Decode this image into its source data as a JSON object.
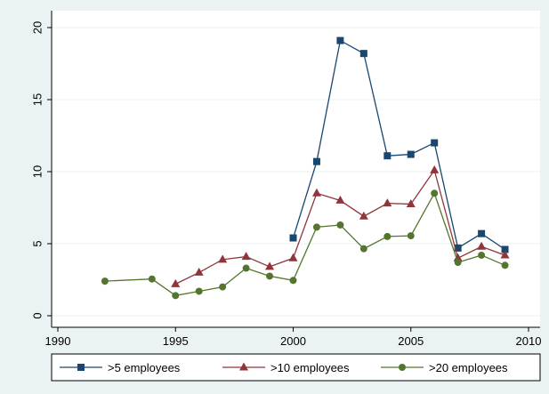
{
  "chart_data": {
    "type": "line",
    "title": "",
    "xlabel": "",
    "ylabel": "",
    "xlim": [
      1990,
      2010
    ],
    "ylim": [
      0,
      20
    ],
    "x_ticks": [
      1990,
      1995,
      2000,
      2005,
      2010
    ],
    "y_ticks": [
      0,
      5,
      10,
      15,
      20
    ],
    "x_tick_labels": [
      "1990",
      "1995",
      "2000",
      "2005",
      "2010"
    ],
    "y_tick_labels": [
      "0",
      "5",
      "10",
      "15",
      "20"
    ],
    "grid": true,
    "legend_position": "bottom",
    "series": [
      {
        "name": ">5 employees",
        "color": "#1a476f",
        "marker": "square",
        "x": [
          2000,
          2001,
          2002,
          2003,
          2004,
          2005,
          2006,
          2007,
          2008,
          2009
        ],
        "y": [
          5.4,
          10.7,
          19.1,
          18.2,
          11.1,
          11.2,
          12.0,
          4.7,
          5.7,
          4.6
        ]
      },
      {
        "name": ">10 employees",
        "color": "#90353b",
        "marker": "triangle",
        "x": [
          1995,
          1996,
          1997,
          1998,
          1999,
          2000,
          2001,
          2002,
          2003,
          2004,
          2005,
          2006,
          2007,
          2008,
          2009
        ],
        "y": [
          2.2,
          3.0,
          3.9,
          4.1,
          3.4,
          4.0,
          8.5,
          8.0,
          6.9,
          7.8,
          7.75,
          10.1,
          4.0,
          4.8,
          4.2
        ]
      },
      {
        "name": ">20 employees",
        "color": "#55752f",
        "marker": "circle",
        "x": [
          1992,
          1994,
          1995,
          1996,
          1997,
          1998,
          1999,
          2000,
          2001,
          2002,
          2003,
          2004,
          2005,
          2006,
          2007,
          2008,
          2009
        ],
        "y": [
          2.4,
          2.55,
          1.4,
          1.7,
          2.0,
          3.3,
          2.75,
          2.45,
          6.15,
          6.3,
          4.65,
          5.5,
          5.55,
          8.5,
          3.7,
          4.2,
          3.5
        ]
      }
    ]
  }
}
